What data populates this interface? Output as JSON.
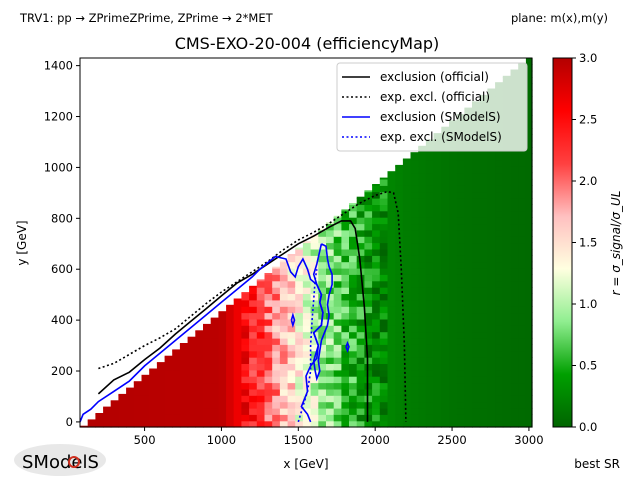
{
  "header": {
    "top_left": "TRV1: pp → ZPrimeZPrime, ZPrime → 2*MET",
    "top_right": "plane: m(x),m(y)"
  },
  "footer": {
    "logo_text": "SModelS",
    "bottom_right": "best SR"
  },
  "chart_data": {
    "type": "heatmap",
    "title": "CMS-EXO-20-004 (efficiencyMap)",
    "xlabel": "x [GeV]",
    "ylabel": "y [GeV]",
    "xlim": [
      80,
      3020
    ],
    "ylim": [
      -20,
      1430
    ],
    "xticks": [
      500,
      1000,
      1500,
      2000,
      2500,
      3000
    ],
    "yticks": [
      0,
      200,
      400,
      600,
      800,
      1000,
      1200,
      1400
    ],
    "colorbar": {
      "label": "r = σ_signal/σ_UL",
      "range": [
        0.0,
        3.0
      ],
      "ticks": [
        "0.0",
        "0.5",
        "1.0",
        "1.5",
        "2.0",
        "2.5",
        "3.0"
      ],
      "colors": [
        "#006400",
        "#00a000",
        "#90ee90",
        "#ffffe0",
        "#ffc0c0",
        "#ff4040",
        "#ff0000",
        "#b30000"
      ]
    },
    "grid": {
      "x_start": 80,
      "x_end": 3020,
      "y_max": 1430,
      "step": 50,
      "diagonal": {
        "y_at_x0": -80,
        "slope": 0.5
      },
      "r_profile": [
        {
          "x": 80,
          "r": 3.0
        },
        {
          "x": 1000,
          "r": 2.95
        },
        {
          "x": 1150,
          "r": 2.55
        },
        {
          "x": 1300,
          "r": 2.05
        },
        {
          "x": 1400,
          "r": 1.7
        },
        {
          "x": 1500,
          "r": 1.4
        },
        {
          "x": 1600,
          "r": 1.1
        },
        {
          "x": 1700,
          "r": 0.85
        },
        {
          "x": 1800,
          "r": 0.62
        },
        {
          "x": 1900,
          "r": 0.45
        },
        {
          "x": 2000,
          "r": 0.3
        },
        {
          "x": 2200,
          "r": 0.18
        },
        {
          "x": 2500,
          "r": 0.1
        },
        {
          "x": 3020,
          "r": 0.04
        }
      ]
    },
    "legend": {
      "placement": "top-right",
      "entries": [
        {
          "label": "exclusion (official)",
          "color": "#000000",
          "style": "solid"
        },
        {
          "label": "exp. excl. (official)",
          "color": "#000000",
          "style": "dotted"
        },
        {
          "label": "exclusion (SModelS)",
          "color": "#0000ff",
          "style": "solid"
        },
        {
          "label": "exp. excl. (SModelS)",
          "color": "#0000ff",
          "style": "dotted"
        }
      ]
    },
    "series": [
      {
        "key": "official_obs",
        "color": "#000000",
        "dash": "",
        "points": [
          [
            200,
            110
          ],
          [
            300,
            165
          ],
          [
            400,
            195
          ],
          [
            500,
            245
          ],
          [
            600,
            290
          ],
          [
            700,
            345
          ],
          [
            800,
            395
          ],
          [
            900,
            445
          ],
          [
            1000,
            495
          ],
          [
            1100,
            545
          ],
          [
            1200,
            580
          ],
          [
            1300,
            620
          ],
          [
            1400,
            660
          ],
          [
            1500,
            700
          ],
          [
            1600,
            730
          ],
          [
            1700,
            765
          ],
          [
            1780,
            790
          ],
          [
            1840,
            790
          ],
          [
            1870,
            760
          ],
          [
            1900,
            640
          ],
          [
            1930,
            450
          ],
          [
            1950,
            250
          ],
          [
            1950,
            0
          ]
        ]
      },
      {
        "key": "official_exp",
        "color": "#000000",
        "dash": "2,2.5",
        "points": [
          [
            200,
            210
          ],
          [
            300,
            230
          ],
          [
            400,
            265
          ],
          [
            500,
            300
          ],
          [
            600,
            330
          ],
          [
            700,
            365
          ],
          [
            800,
            415
          ],
          [
            900,
            465
          ],
          [
            1000,
            510
          ],
          [
            1100,
            550
          ],
          [
            1200,
            590
          ],
          [
            1300,
            630
          ],
          [
            1400,
            675
          ],
          [
            1500,
            715
          ],
          [
            1600,
            745
          ],
          [
            1700,
            780
          ],
          [
            1800,
            820
          ],
          [
            1900,
            860
          ],
          [
            2000,
            890
          ],
          [
            2080,
            905
          ],
          [
            2120,
            900
          ],
          [
            2150,
            820
          ],
          [
            2170,
            600
          ],
          [
            2190,
            300
          ],
          [
            2200,
            0
          ]
        ]
      },
      {
        "key": "smodels_obs",
        "color": "#0000ff",
        "dash": "",
        "points": [
          [
            80,
            0
          ],
          [
            100,
            30
          ],
          [
            150,
            50
          ],
          [
            200,
            80
          ],
          [
            300,
            120
          ],
          [
            400,
            160
          ],
          [
            500,
            220
          ],
          [
            600,
            270
          ],
          [
            700,
            320
          ],
          [
            800,
            370
          ],
          [
            900,
            420
          ],
          [
            1000,
            470
          ],
          [
            1100,
            520
          ],
          [
            1200,
            570
          ],
          [
            1250,
            600
          ],
          [
            1300,
            625
          ],
          [
            1350,
            650
          ],
          [
            1420,
            640
          ],
          [
            1450,
            590
          ],
          [
            1480,
            570
          ],
          [
            1500,
            610
          ],
          [
            1530,
            640
          ],
          [
            1560,
            600
          ],
          [
            1580,
            560
          ],
          [
            1620,
            540
          ],
          [
            1650,
            500
          ],
          [
            1640,
            470
          ],
          [
            1660,
            430
          ],
          [
            1650,
            380
          ],
          [
            1600,
            350
          ],
          [
            1630,
            300
          ],
          [
            1620,
            250
          ],
          [
            1580,
            220
          ],
          [
            1550,
            180
          ],
          [
            1560,
            120
          ],
          [
            1520,
            60
          ],
          [
            1560,
            30
          ],
          [
            1580,
            0
          ]
        ]
      },
      {
        "key": "smodels_exp",
        "color": "#0000ff",
        "dash": "2,2.5",
        "points": [
          [
            1500,
            0
          ],
          [
            1530,
            60
          ],
          [
            1560,
            120
          ],
          [
            1580,
            200
          ],
          [
            1580,
            300
          ],
          [
            1590,
            400
          ],
          [
            1600,
            480
          ],
          [
            1610,
            560
          ],
          [
            1620,
            600
          ]
        ]
      },
      {
        "key": "smodels_obs_blob1",
        "color": "#0000ff",
        "dash": "",
        "points": [
          [
            1650,
            700
          ],
          [
            1680,
            690
          ],
          [
            1690,
            640
          ],
          [
            1700,
            610
          ],
          [
            1720,
            580
          ],
          [
            1720,
            540
          ],
          [
            1700,
            500
          ],
          [
            1690,
            460
          ],
          [
            1700,
            420
          ],
          [
            1690,
            380
          ],
          [
            1670,
            350
          ],
          [
            1650,
            320
          ],
          [
            1640,
            280
          ],
          [
            1630,
            240
          ],
          [
            1640,
            200
          ],
          [
            1620,
            170
          ],
          [
            1610,
            200
          ],
          [
            1600,
            240
          ],
          [
            1630,
            300
          ],
          [
            1600,
            350
          ],
          [
            1650,
            380
          ],
          [
            1660,
            430
          ],
          [
            1640,
            470
          ],
          [
            1650,
            500
          ],
          [
            1620,
            540
          ],
          [
            1600,
            580
          ],
          [
            1620,
            620
          ],
          [
            1650,
            700
          ]
        ]
      },
      {
        "key": "smodels_island1",
        "color": "#0000ff",
        "dash": "",
        "points": [
          [
            1455,
            400
          ],
          [
            1465,
            420
          ],
          [
            1475,
            400
          ],
          [
            1465,
            380
          ],
          [
            1455,
            400
          ]
        ]
      },
      {
        "key": "smodels_island2",
        "color": "#0000ff",
        "dash": "",
        "points": [
          [
            1810,
            295
          ],
          [
            1820,
            310
          ],
          [
            1830,
            295
          ],
          [
            1820,
            280
          ],
          [
            1810,
            295
          ]
        ]
      }
    ]
  }
}
